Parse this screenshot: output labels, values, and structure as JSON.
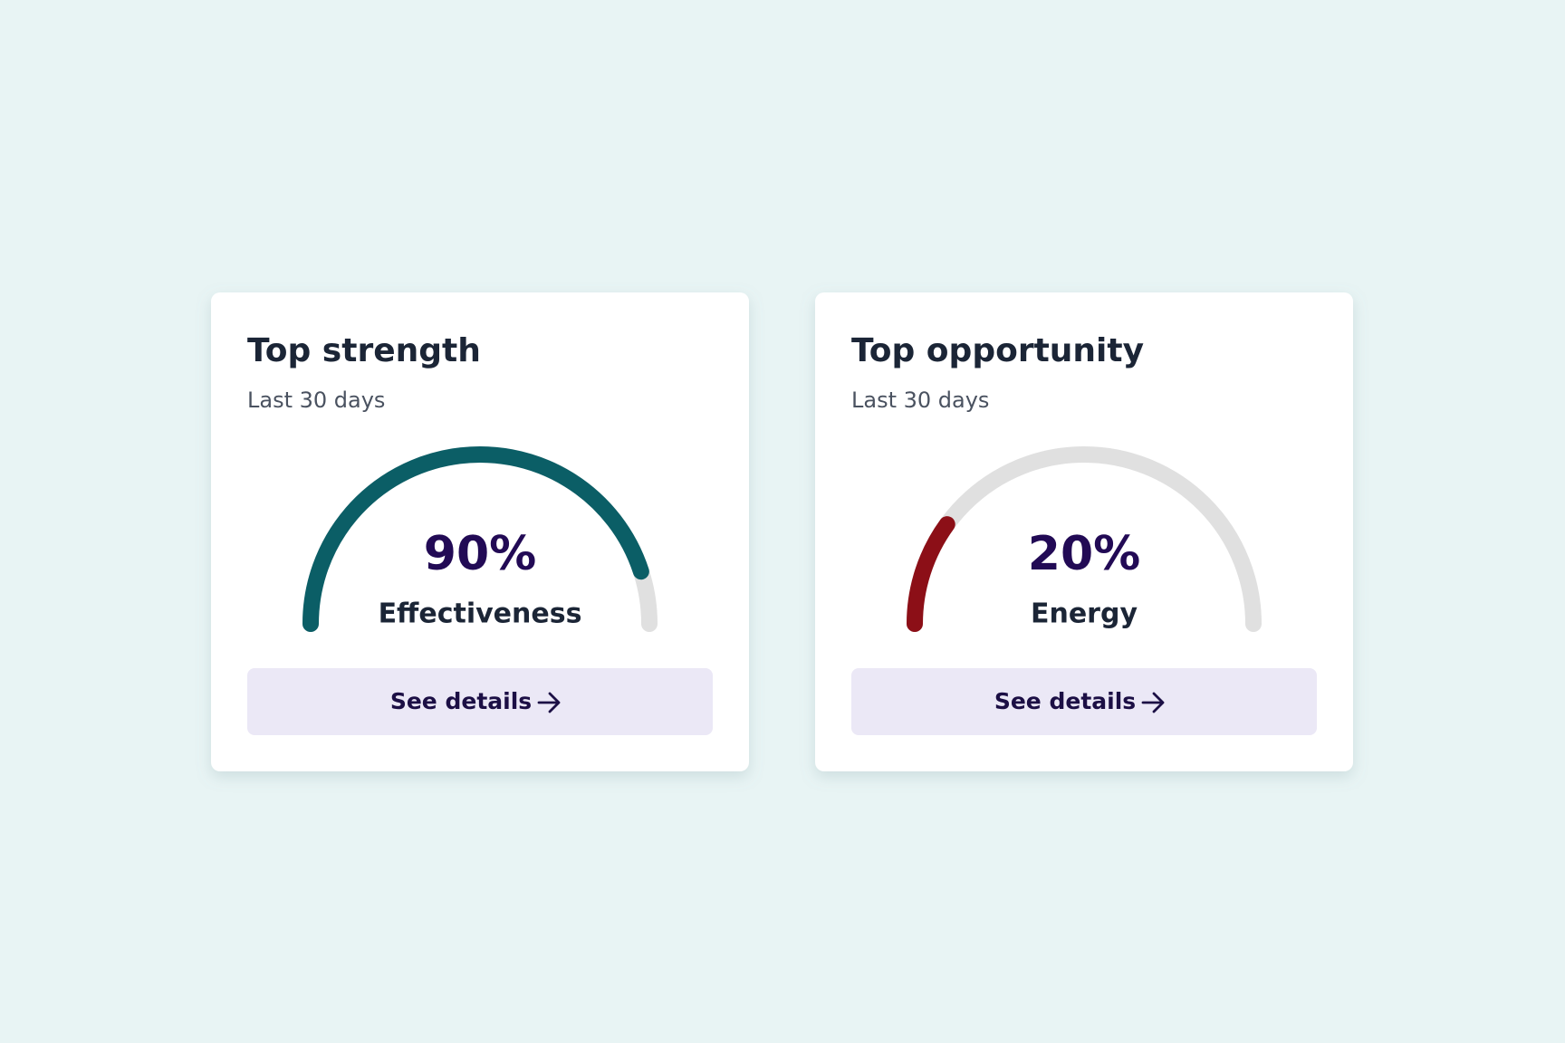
{
  "cards": [
    {
      "title": "Top strength",
      "subtitle": "Last 30 days",
      "gauge": {
        "value": 90,
        "value_label": "90%",
        "label": "Effectiveness",
        "lim": [
          0,
          100
        ],
        "color": "#0b5e66"
      },
      "button": "See details"
    },
    {
      "title": "Top opportunity",
      "subtitle": "Last 30 days",
      "gauge": {
        "value": 20,
        "value_label": "20%",
        "label": "Energy",
        "lim": [
          0,
          100
        ],
        "color": "#8c0f17"
      },
      "button": "See details"
    }
  ]
}
